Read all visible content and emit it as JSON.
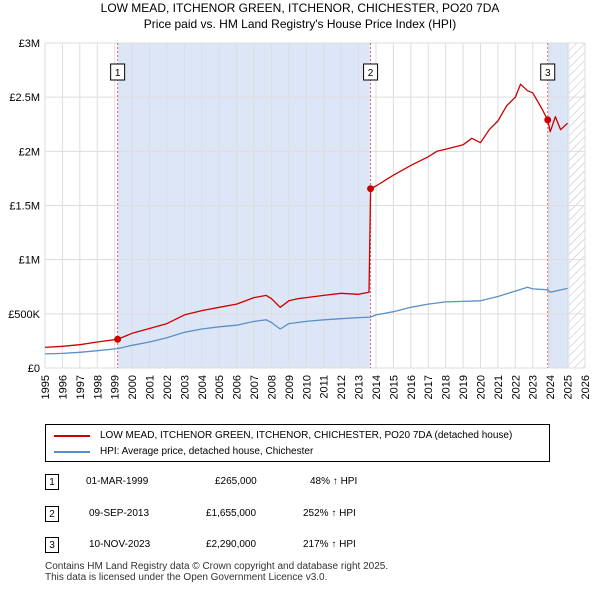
{
  "header": {
    "title_line1": "LOW MEAD, ITCHENOR GREEN, ITCHENOR, CHICHESTER, PO20 7DA",
    "title_line2": "Price paid vs. HM Land Registry's House Price Index (HPI)"
  },
  "chart_data": {
    "type": "line",
    "title": "LOW MEAD, ITCHENOR GREEN, ITCHENOR, CHICHESTER, PO20 7DA",
    "subtitle": "Price paid vs. HM Land Registry's House Price Index (HPI)",
    "xlabel": "",
    "ylabel": "",
    "xlim": [
      1995,
      2026
    ],
    "ylim": [
      0,
      3000000
    ],
    "grid": true,
    "x_ticks": [
      1995,
      1996,
      1997,
      1998,
      1999,
      2000,
      2001,
      2002,
      2003,
      2004,
      2005,
      2006,
      2007,
      2008,
      2009,
      2010,
      2011,
      2012,
      2013,
      2014,
      2015,
      2016,
      2017,
      2018,
      2019,
      2020,
      2021,
      2022,
      2023,
      2024,
      2025,
      2026
    ],
    "y_ticks": [
      {
        "value": 0,
        "label": "£0"
      },
      {
        "value": 500000,
        "label": "£500K"
      },
      {
        "value": 1000000,
        "label": "£1M"
      },
      {
        "value": 1500000,
        "label": "£1.5M"
      },
      {
        "value": 2000000,
        "label": "£2M"
      },
      {
        "value": 2500000,
        "label": "£2.5M"
      },
      {
        "value": 3000000,
        "label": "£3M"
      }
    ],
    "shaded_spans": [
      [
        1999.17,
        2013.69
      ],
      [
        2023.86,
        2025.1
      ]
    ],
    "hatched_span": [
      2025.1,
      2026
    ],
    "colors": {
      "property": "#cc0000",
      "hpi": "#5b8fc7",
      "shade": "#dde6f6",
      "vline": "#e06060",
      "grid": "#dddddd"
    },
    "series": [
      {
        "name": "LOW MEAD, ITCHENOR GREEN, ITCHENOR, CHICHESTER, PO20 7DA (detached house)",
        "color": "#cc0000",
        "x": [
          1995,
          1996,
          1997,
          1998,
          1999.17,
          2000,
          2001,
          2002,
          2003,
          2004,
          2005,
          2006,
          2007,
          2007.7,
          2008,
          2008.5,
          2009,
          2009.5,
          2010,
          2011,
          2012,
          2013,
          2013.6,
          2013.69,
          2014,
          2015,
          2016,
          2017,
          2017.5,
          2018,
          2019,
          2019.5,
          2020,
          2020.5,
          2021,
          2021.5,
          2022,
          2022.3,
          2022.7,
          2023,
          2023.5,
          2023.86,
          2024,
          2024.3,
          2024.6,
          2025
        ],
        "values": [
          190000,
          200000,
          215000,
          240000,
          265000,
          320000,
          365000,
          410000,
          490000,
          530000,
          560000,
          590000,
          650000,
          670000,
          640000,
          560000,
          620000,
          640000,
          650000,
          670000,
          690000,
          680000,
          700000,
          1655000,
          1680000,
          1780000,
          1870000,
          1950000,
          2000000,
          2020000,
          2060000,
          2120000,
          2080000,
          2200000,
          2280000,
          2420000,
          2500000,
          2620000,
          2560000,
          2540000,
          2400000,
          2290000,
          2180000,
          2320000,
          2200000,
          2260000
        ]
      },
      {
        "name": "HPI: Average price, detached house, Chichester",
        "color": "#5b8fc7",
        "x": [
          1995,
          1996,
          1997,
          1998,
          1999.17,
          2000,
          2001,
          2002,
          2003,
          2004,
          2005,
          2006,
          2007,
          2007.7,
          2008,
          2008.5,
          2009,
          2009.5,
          2010,
          2011,
          2012,
          2013,
          2013.69,
          2014,
          2015,
          2016,
          2017,
          2018,
          2019,
          2020,
          2021,
          2022,
          2022.7,
          2023,
          2023.86,
          2024,
          2025
        ],
        "values": [
          130000,
          135000,
          145000,
          160000,
          179000,
          210000,
          240000,
          280000,
          330000,
          360000,
          380000,
          395000,
          430000,
          445000,
          420000,
          360000,
          410000,
          420000,
          430000,
          445000,
          455000,
          465000,
          470000,
          490000,
          520000,
          560000,
          590000,
          610000,
          615000,
          620000,
          660000,
          710000,
          745000,
          730000,
          722000,
          700000,
          735000
        ]
      }
    ],
    "transactions": [
      {
        "label": "1",
        "date": "01-MAR-1999",
        "price": "£265,000",
        "hpi_change": "48% ↑ HPI",
        "x": 1999.17,
        "value": 265000
      },
      {
        "label": "2",
        "date": "09-SEP-2013",
        "price": "£1,655,000",
        "hpi_change": "252% ↑ HPI",
        "x": 2013.69,
        "value": 1655000
      },
      {
        "label": "3",
        "date": "10-NOV-2023",
        "price": "£2,290,000",
        "hpi_change": "217% ↑ HPI",
        "x": 2023.86,
        "value": 2290000
      }
    ]
  },
  "legend": {
    "items": [
      {
        "label": "LOW MEAD, ITCHENOR GREEN, ITCHENOR, CHICHESTER, PO20 7DA (detached house)",
        "color": "#cc0000"
      },
      {
        "label": "HPI: Average price, detached house, Chichester",
        "color": "#5b8fc7"
      }
    ]
  },
  "footer": {
    "line1": "Contains HM Land Registry data © Crown copyright and database right 2025.",
    "line2": "This data is licensed under the Open Government Licence v3.0."
  }
}
